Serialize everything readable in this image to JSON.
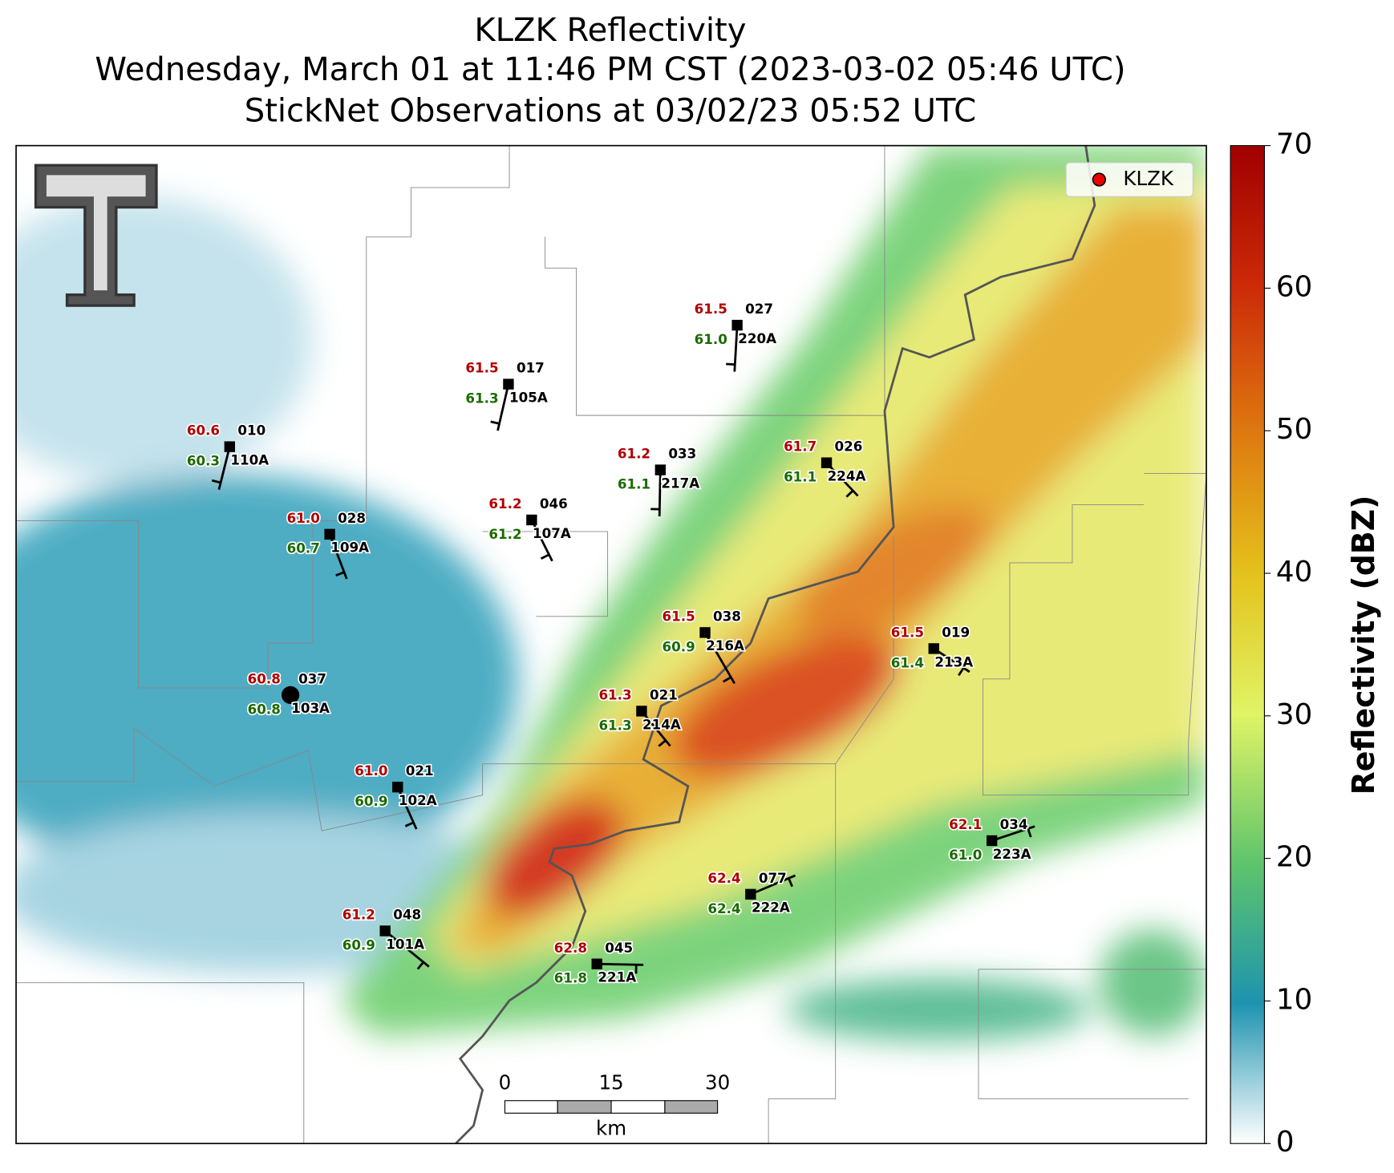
{
  "header": {
    "title": "KLZK Reflectivity",
    "subtitle": "Wednesday, March 01 at 11:46 PM CST (2023-03-02 05:46 UTC)",
    "observations": "StickNet Observations at 03/02/23 05:52 UTC"
  },
  "legend": {
    "label": "KLZK"
  },
  "colorbar": {
    "label": "Reflectivity (dBZ)",
    "lim": [
      0,
      70
    ],
    "ticks": [
      0,
      10,
      20,
      30,
      40,
      50,
      60,
      70
    ]
  },
  "scale_bar": {
    "ticks": [
      "0",
      "15",
      "30"
    ],
    "unit": "km"
  },
  "stations": [
    {
      "id": "110A",
      "temp": "60.6",
      "dew": "60.3",
      "wind": "010"
    },
    {
      "id": "109A",
      "temp": "61.0",
      "dew": "60.7",
      "wind": "028"
    },
    {
      "id": "103A",
      "temp": "60.8",
      "dew": "60.8",
      "wind": "037"
    },
    {
      "id": "105A",
      "temp": "61.5",
      "dew": "61.3",
      "wind": "017"
    },
    {
      "id": "107A",
      "temp": "61.2",
      "dew": "61.2",
      "wind": "046"
    },
    {
      "id": "217A",
      "temp": "61.2",
      "dew": "61.1",
      "wind": "033"
    },
    {
      "id": "220A",
      "temp": "61.5",
      "dew": "61.0",
      "wind": "027"
    },
    {
      "id": "224A",
      "temp": "61.7",
      "dew": "61.1",
      "wind": "026"
    },
    {
      "id": "216A",
      "temp": "61.5",
      "dew": "60.9",
      "wind": "038"
    },
    {
      "id": "214A",
      "temp": "61.3",
      "dew": "61.3",
      "wind": "021"
    },
    {
      "id": "213A",
      "temp": "61.5",
      "dew": "61.4",
      "wind": "019"
    },
    {
      "id": "102A",
      "temp": "61.0",
      "dew": "60.9",
      "wind": "021"
    },
    {
      "id": "101A",
      "temp": "61.2",
      "dew": "60.9",
      "wind": "048"
    },
    {
      "id": "221A",
      "temp": "62.8",
      "dew": "61.8",
      "wind": "045"
    },
    {
      "id": "222A",
      "temp": "62.4",
      "dew": "62.4",
      "wind": "077"
    },
    {
      "id": "223A",
      "temp": "62.1",
      "dew": "61.0",
      "wind": "034"
    }
  ]
}
